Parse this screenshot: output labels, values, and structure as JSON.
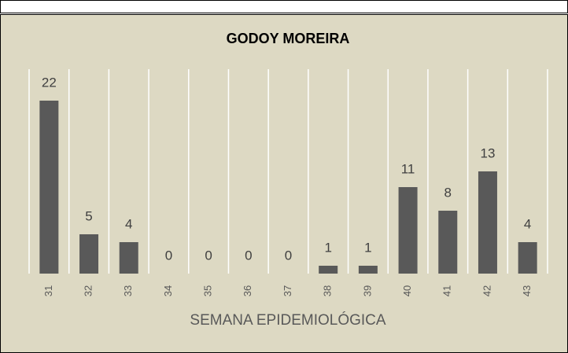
{
  "chart_data": {
    "type": "bar",
    "title": "GODOY MOREIRA",
    "x_label": "SEMANA EPIDEMIOLÓGICA",
    "categories": [
      "31",
      "32",
      "33",
      "34",
      "35",
      "36",
      "37",
      "38",
      "39",
      "40",
      "41",
      "42",
      "43"
    ],
    "values": [
      22,
      5,
      4,
      0,
      0,
      0,
      0,
      1,
      1,
      11,
      8,
      13,
      4
    ],
    "color": "#595959",
    "ylim": [
      0,
      26
    ],
    "grid": true
  }
}
